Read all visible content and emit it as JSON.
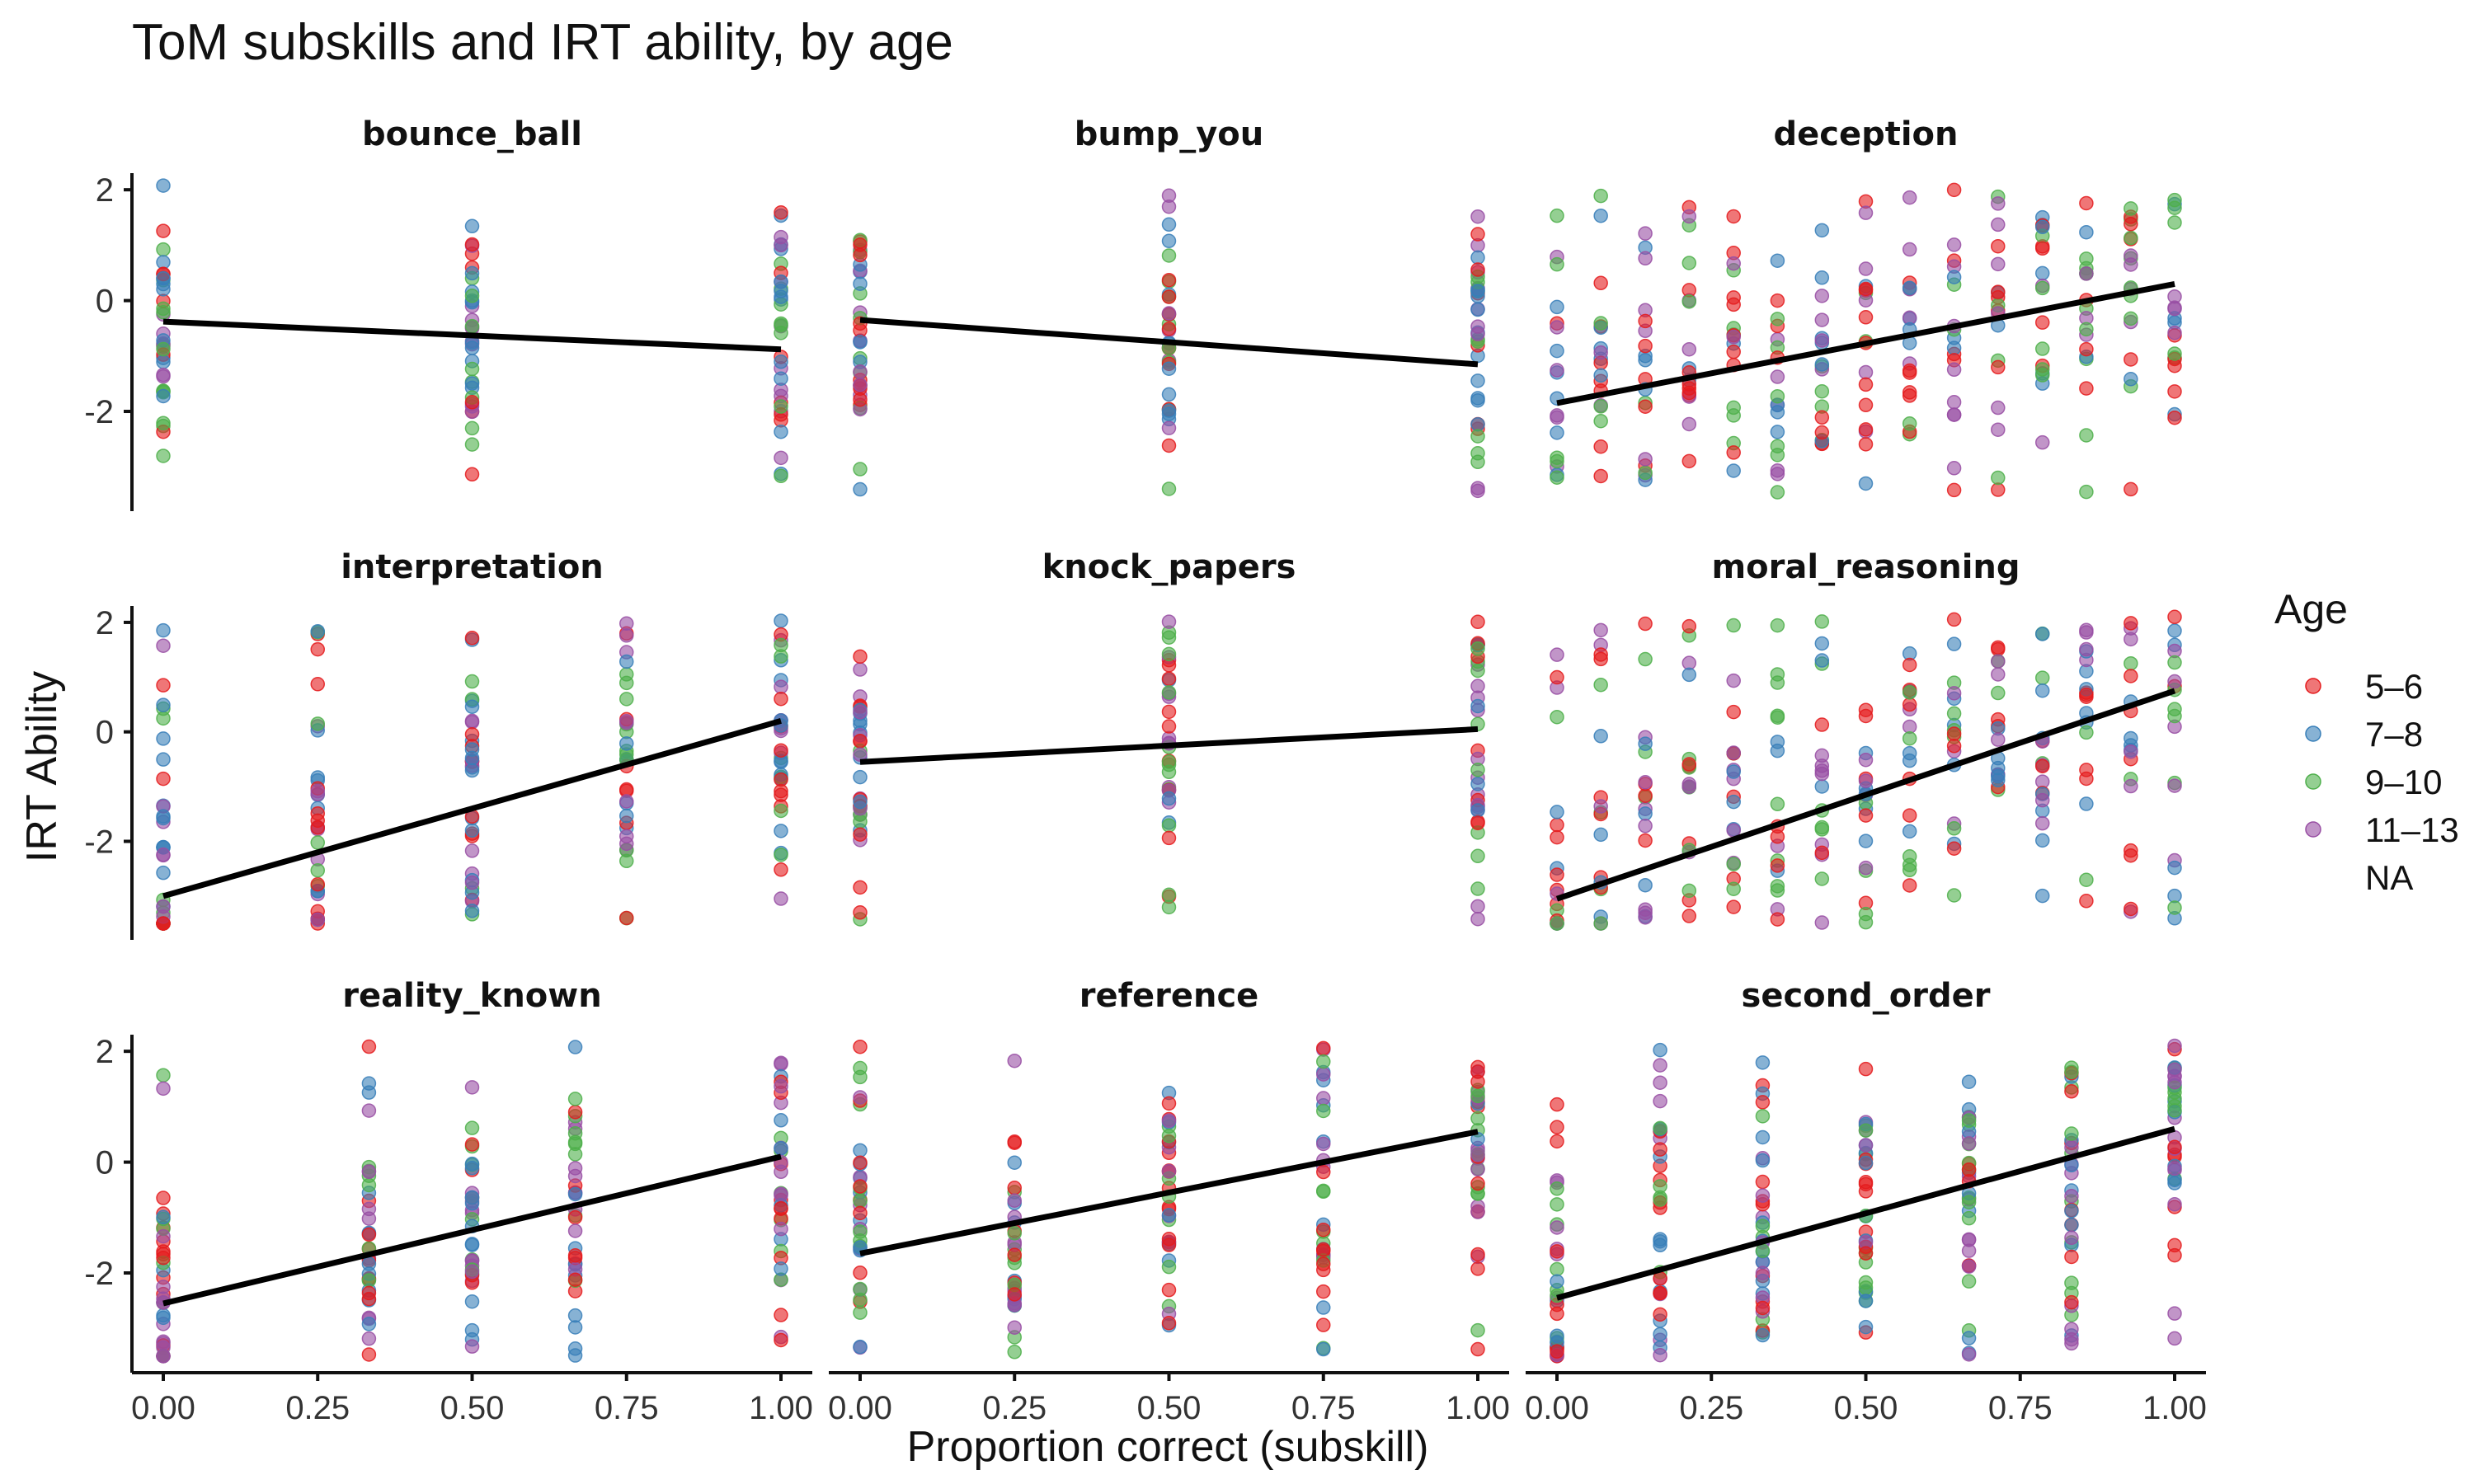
{
  "chart_data": {
    "type": "scatter",
    "title": "ToM subskills and IRT ability, by age",
    "xlabel": "Proportion correct (subskill)",
    "ylabel": "IRT Ability",
    "xlim": [
      0,
      1
    ],
    "ylim": [
      -3.8,
      2.3
    ],
    "x_ticks": [
      "0.00",
      "0.25",
      "0.50",
      "0.75",
      "1.00"
    ],
    "y_ticks": [
      "2",
      "0",
      "-2"
    ],
    "grid": false,
    "legend": {
      "title": "Age",
      "position": "right",
      "entries": [
        {
          "label": "5–6",
          "color": "#E41A1C"
        },
        {
          "label": "7–8",
          "color": "#377EB8"
        },
        {
          "label": "9–10",
          "color": "#4DAF4A"
        },
        {
          "label": "11–13",
          "color": "#984EA3"
        },
        {
          "label": "NA",
          "color": ""
        }
      ]
    },
    "facets": [
      {
        "name": "bounce_ball",
        "x_levels": [
          0,
          0.5,
          1
        ],
        "fit": [
          [
            0,
            -0.38
          ],
          [
            1,
            -0.88
          ]
        ],
        "y_range": [
          -3.3,
          2.1
        ]
      },
      {
        "name": "bump_you",
        "x_levels": [
          0,
          0.5,
          1
        ],
        "fit": [
          [
            0,
            -0.35
          ],
          [
            1,
            -1.15
          ]
        ],
        "y_range": [
          -3.5,
          2.1
        ]
      },
      {
        "name": "deception",
        "x_levels": [
          0,
          0.143,
          0.286,
          0.429,
          0.571,
          0.714,
          0.857,
          1,
          0.071,
          0.214,
          0.357,
          0.5,
          0.643,
          0.786,
          0.929
        ],
        "fit": [
          [
            0,
            -1.85
          ],
          [
            1,
            0.3
          ]
        ],
        "y_range": [
          -3.5,
          2.1
        ]
      },
      {
        "name": "interpretation",
        "x_levels": [
          0,
          0.25,
          0.5,
          0.75,
          1
        ],
        "fit": [
          [
            0,
            -3.0
          ],
          [
            1,
            0.2
          ]
        ],
        "y_range": [
          -3.5,
          2.1
        ]
      },
      {
        "name": "knock_papers",
        "x_levels": [
          0,
          0.5,
          1
        ],
        "fit": [
          [
            0,
            -0.55
          ],
          [
            1,
            0.05
          ]
        ],
        "y_range": [
          -3.5,
          2.1
        ]
      },
      {
        "name": "moral_reasoning",
        "x_levels": [
          0,
          0.143,
          0.286,
          0.429,
          0.571,
          0.714,
          0.857,
          1,
          0.071,
          0.214,
          0.357,
          0.5,
          0.643,
          0.786,
          0.929
        ],
        "fit": [
          [
            0,
            -3.05
          ],
          [
            1,
            0.75
          ]
        ],
        "y_range": [
          -3.5,
          2.1
        ]
      },
      {
        "name": "reality_known",
        "x_levels": [
          0,
          0.333,
          0.5,
          0.667,
          1
        ],
        "fit": [
          [
            0,
            -2.55
          ],
          [
            1,
            0.1
          ]
        ],
        "y_range": [
          -3.5,
          2.1
        ]
      },
      {
        "name": "reference",
        "x_levels": [
          0,
          0.25,
          0.5,
          0.75,
          1
        ],
        "fit": [
          [
            0,
            -1.65
          ],
          [
            1,
            0.55
          ]
        ],
        "y_range": [
          -3.5,
          2.1
        ]
      },
      {
        "name": "second_order",
        "x_levels": [
          0,
          0.167,
          0.333,
          0.5,
          0.667,
          0.833,
          1
        ],
        "fit": [
          [
            0,
            -2.45
          ],
          [
            1,
            0.6
          ]
        ],
        "y_range": [
          -3.5,
          2.1
        ]
      }
    ]
  }
}
